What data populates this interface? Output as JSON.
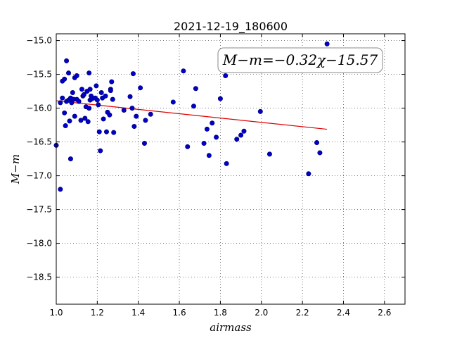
{
  "chart_data": {
    "type": "scatter",
    "title": "2021-12-19_180600",
    "xlabel": "airmass",
    "ylabel": "M−m",
    "xlim": [
      1.0,
      2.7
    ],
    "ylim": [
      -18.9,
      -14.9
    ],
    "y_inverted": true,
    "grid": true,
    "xticks": [
      1.0,
      1.2,
      1.4,
      1.6,
      1.8,
      2.0,
      2.2,
      2.4,
      2.6
    ],
    "xtick_labels": [
      "1.0",
      "1.2",
      "1.4",
      "1.6",
      "1.8",
      "2.0",
      "2.2",
      "2.4",
      "2.6"
    ],
    "yticks": [
      -15.0,
      -15.5,
      -16.0,
      -16.5,
      -17.0,
      -17.5,
      -18.0,
      -18.5
    ],
    "ytick_labels": [
      "−15.0",
      "−15.5",
      "−16.0",
      "−16.5",
      "−17.0",
      "−17.5",
      "−18.0",
      "−18.5"
    ],
    "annotation": "M−m=−0.32χ−15.57",
    "colors": {
      "points": "#0000cc",
      "fit": "#dd0000"
    },
    "fit": {
      "slope": -0.32,
      "intercept": -15.57,
      "x": [
        1.0,
        2.32
      ]
    },
    "points": [
      [
        1.0,
        -16.55
      ],
      [
        1.02,
        -17.2
      ],
      [
        1.02,
        -15.92
      ],
      [
        1.03,
        -15.6
      ],
      [
        1.03,
        -15.85
      ],
      [
        1.04,
        -15.57
      ],
      [
        1.04,
        -16.07
      ],
      [
        1.045,
        -16.26
      ],
      [
        1.05,
        -15.3
      ],
      [
        1.05,
        -15.9
      ],
      [
        1.06,
        -15.48
      ],
      [
        1.06,
        -15.88
      ],
      [
        1.065,
        -16.19
      ],
      [
        1.07,
        -15.85
      ],
      [
        1.07,
        -16.75
      ],
      [
        1.075,
        -15.92
      ],
      [
        1.08,
        -15.77
      ],
      [
        1.085,
        -15.87
      ],
      [
        1.09,
        -16.12
      ],
      [
        1.09,
        -15.55
      ],
      [
        1.1,
        -15.52
      ],
      [
        1.1,
        -15.87
      ],
      [
        1.11,
        -15.9
      ],
      [
        1.12,
        -16.18
      ],
      [
        1.125,
        -15.72
      ],
      [
        1.13,
        -15.82
      ],
      [
        1.135,
        -15.8
      ],
      [
        1.14,
        -16.15
      ],
      [
        1.145,
        -15.98
      ],
      [
        1.15,
        -15.75
      ],
      [
        1.155,
        -16.2
      ],
      [
        1.16,
        -16.0
      ],
      [
        1.16,
        -15.48
      ],
      [
        1.165,
        -15.72
      ],
      [
        1.165,
        -15.88
      ],
      [
        1.17,
        -15.82
      ],
      [
        1.175,
        -15.86
      ],
      [
        1.19,
        -15.85
      ],
      [
        1.195,
        -15.67
      ],
      [
        1.2,
        -15.88
      ],
      [
        1.205,
        -15.95
      ],
      [
        1.21,
        -16.35
      ],
      [
        1.215,
        -16.63
      ],
      [
        1.22,
        -15.77
      ],
      [
        1.225,
        -15.85
      ],
      [
        1.23,
        -16.16
      ],
      [
        1.24,
        -15.82
      ],
      [
        1.245,
        -16.35
      ],
      [
        1.25,
        -16.06
      ],
      [
        1.26,
        -16.1
      ],
      [
        1.265,
        -15.72
      ],
      [
        1.265,
        -15.74
      ],
      [
        1.27,
        -15.61
      ],
      [
        1.275,
        -15.87
      ],
      [
        1.28,
        -16.36
      ],
      [
        1.33,
        -16.03
      ],
      [
        1.36,
        -15.83
      ],
      [
        1.37,
        -16.0
      ],
      [
        1.375,
        -15.49
      ],
      [
        1.38,
        -16.27
      ],
      [
        1.39,
        -16.12
      ],
      [
        1.41,
        -15.7
      ],
      [
        1.43,
        -16.52
      ],
      [
        1.435,
        -16.18
      ],
      [
        1.46,
        -16.09
      ],
      [
        1.57,
        -15.91
      ],
      [
        1.62,
        -15.45
      ],
      [
        1.64,
        -16.57
      ],
      [
        1.67,
        -15.97
      ],
      [
        1.68,
        -15.71
      ],
      [
        1.72,
        -16.52
      ],
      [
        1.735,
        -16.31
      ],
      [
        1.745,
        -16.7
      ],
      [
        1.76,
        -16.22
      ],
      [
        1.78,
        -16.43
      ],
      [
        1.8,
        -15.86
      ],
      [
        1.825,
        -15.52
      ],
      [
        1.83,
        -16.82
      ],
      [
        1.88,
        -16.46
      ],
      [
        1.9,
        -16.4
      ],
      [
        1.915,
        -16.34
      ],
      [
        1.995,
        -16.05
      ],
      [
        2.04,
        -16.68
      ],
      [
        2.23,
        -16.97
      ],
      [
        2.27,
        -16.51
      ],
      [
        2.285,
        -16.66
      ],
      [
        2.32,
        -15.05
      ]
    ]
  }
}
